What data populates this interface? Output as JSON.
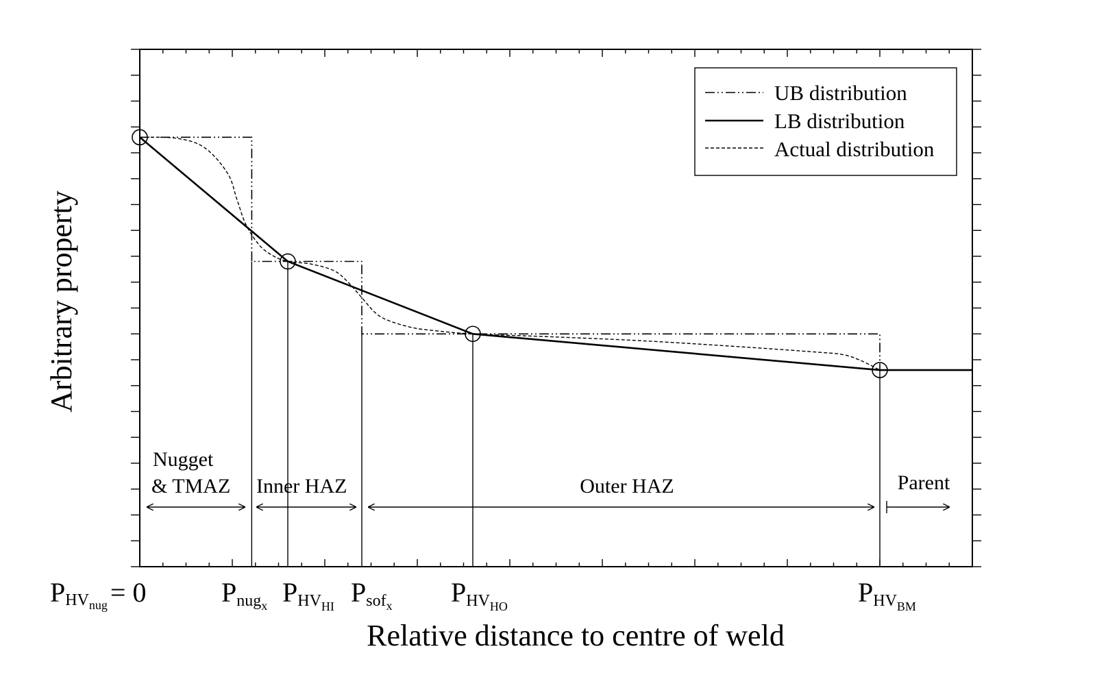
{
  "axes": {
    "xlabel": "Relative distance to centre of weld",
    "ylabel": "Arbitrary property"
  },
  "legend": {
    "position": "top-right",
    "items": [
      {
        "label": "UB distribution",
        "style": "dash-dot-dot"
      },
      {
        "label": "LB distribution",
        "style": "solid"
      },
      {
        "label": "Actual distribution",
        "style": "dashed"
      }
    ]
  },
  "zones": [
    {
      "id": "nugget",
      "lines": [
        "Nugget",
        "& TMAZ"
      ]
    },
    {
      "id": "inner",
      "lines": [
        "Inner HAZ"
      ]
    },
    {
      "id": "outer",
      "lines": [
        "Outer HAZ"
      ]
    },
    {
      "id": "parent",
      "lines": [
        "Parent"
      ]
    }
  ],
  "x_markers": {
    "p_hv_nug": {
      "main": "P",
      "sub": "HV",
      "subsub": "nug",
      "suffix": "= 0"
    },
    "p_nug_x": {
      "main": "P",
      "sub": "nug",
      "subsub": "x"
    },
    "p_hv_hi": {
      "main": "P",
      "sub": "HV",
      "subsub": "HI"
    },
    "p_sof_x": {
      "main": "P",
      "sub": "sof",
      "subsub": "x"
    },
    "p_hv_ho": {
      "main": "P",
      "sub": "HV",
      "subsub": "HO"
    },
    "p_hv_bm": {
      "main": "P",
      "sub": "HV",
      "subsub": "BM"
    }
  },
  "chart_data": {
    "type": "line",
    "xlim": [
      0,
      9
    ],
    "ylim": [
      0,
      10
    ],
    "grid": false,
    "key_x": {
      "p_hv_nug": 0,
      "p_nug_x": 1.21,
      "p_hv_hi": 1.6,
      "p_sof_x": 2.4,
      "p_hv_ho": 3.6,
      "p_hv_bm": 8.0
    },
    "series": [
      {
        "name": "UB distribution",
        "style": "dash-dot-dot",
        "x": [
          0,
          1.21,
          1.21,
          2.4,
          2.4,
          8.0,
          8.0
        ],
        "y": [
          8.3,
          8.3,
          5.9,
          5.9,
          4.5,
          4.5,
          3.8
        ]
      },
      {
        "name": "LB distribution",
        "style": "solid",
        "x": [
          0,
          1.6,
          3.6,
          8.0,
          9.0
        ],
        "y": [
          8.3,
          5.9,
          4.5,
          3.8,
          3.8
        ]
      },
      {
        "name": "Actual distribution",
        "style": "dashed",
        "x": [
          0,
          0.4,
          0.7,
          0.95,
          1.05,
          1.15,
          1.3,
          1.45,
          1.6,
          1.85,
          2.1,
          2.25,
          2.4,
          2.55,
          2.7,
          2.95,
          3.2,
          3.6,
          4.5,
          5.5,
          6.5,
          7.3,
          7.6,
          7.8,
          8.0
        ],
        "y": [
          8.3,
          8.28,
          8.1,
          7.6,
          7.1,
          6.6,
          6.2,
          6.0,
          5.9,
          5.85,
          5.72,
          5.5,
          5.2,
          4.9,
          4.75,
          4.62,
          4.56,
          4.5,
          4.44,
          4.36,
          4.25,
          4.15,
          4.1,
          3.98,
          3.8
        ]
      }
    ],
    "markers": [
      {
        "x": 0,
        "y": 8.3
      },
      {
        "x": 1.6,
        "y": 5.9
      },
      {
        "x": 3.6,
        "y": 4.5
      },
      {
        "x": 8.0,
        "y": 3.8
      }
    ]
  }
}
